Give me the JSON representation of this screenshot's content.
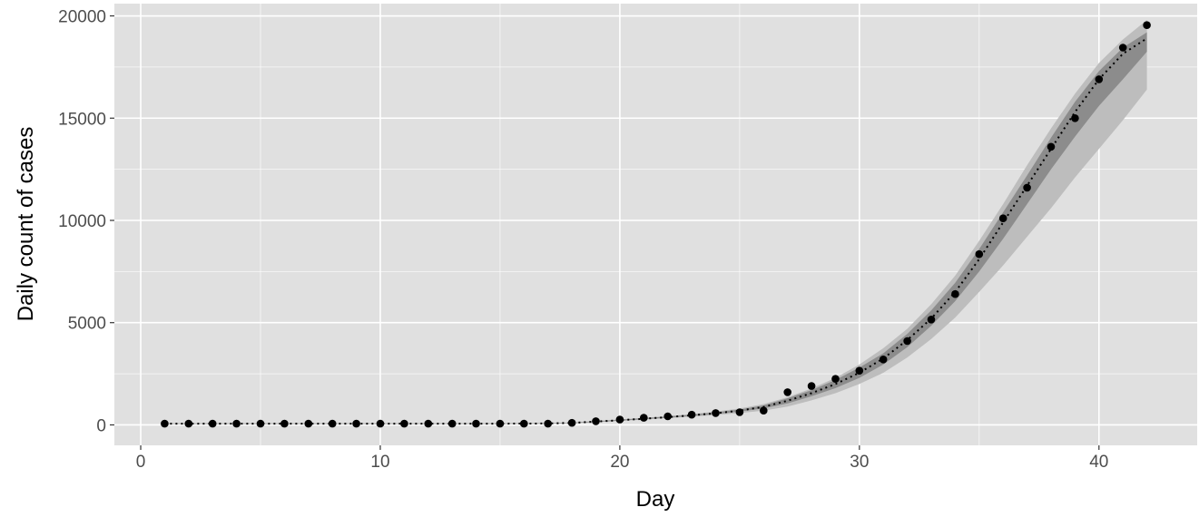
{
  "chart_data": {
    "type": "scatter",
    "title": "",
    "xlabel": "Day",
    "ylabel": "Daily  count of cases",
    "xlim": [
      -1.1,
      44.1
    ],
    "ylim": [
      -1000,
      20600
    ],
    "x_ticks": [
      0,
      10,
      20,
      30,
      40
    ],
    "y_ticks": [
      0,
      5000,
      10000,
      15000,
      20000
    ],
    "x_tick_labels": [
      "0",
      "10",
      "20",
      "30",
      "40"
    ],
    "y_tick_labels": [
      "0",
      "5000",
      "10000",
      "15000",
      "20000"
    ],
    "grid": true,
    "legend": "none",
    "colors": {
      "panel": "#e0e0e0",
      "grid_major": "#ffffff",
      "points": "#000000",
      "fit_line": "#000000",
      "band_outer": "#bdbdbd",
      "band_inner": "#8c8c8c"
    },
    "series": [
      {
        "kind": "points",
        "x": [
          1,
          2,
          3,
          4,
          5,
          6,
          7,
          8,
          9,
          10,
          11,
          12,
          13,
          14,
          15,
          16,
          17,
          18,
          19,
          20,
          21,
          22,
          23,
          24,
          25,
          26,
          27,
          28,
          29,
          30,
          31,
          32,
          33,
          34,
          35,
          36,
          37,
          38,
          39,
          40,
          41,
          42
        ],
        "values": [
          60,
          60,
          60,
          60,
          60,
          60,
          60,
          60,
          60,
          60,
          60,
          60,
          60,
          60,
          60,
          60,
          60,
          100,
          180,
          260,
          350,
          420,
          500,
          580,
          620,
          700,
          1600,
          1900,
          2250,
          2650,
          3200,
          4100,
          5150,
          6400,
          8350,
          10100,
          11600,
          13600,
          15000,
          16900,
          18450,
          19550
        ]
      },
      {
        "kind": "fit-line-dotted",
        "x": [
          1,
          5,
          10,
          15,
          17,
          18,
          19,
          20,
          21,
          22,
          23,
          24,
          25,
          26,
          27,
          28,
          29,
          30,
          31,
          32,
          33,
          34,
          35,
          36,
          37,
          38,
          39,
          40,
          41,
          42
        ],
        "values": [
          60,
          60,
          60,
          60,
          70,
          100,
          160,
          230,
          300,
          380,
          470,
          570,
          700,
          880,
          1180,
          1550,
          2000,
          2550,
          3250,
          4150,
          5200,
          6500,
          8100,
          9900,
          11700,
          13500,
          15300,
          16900,
          18150,
          18900
        ]
      },
      {
        "kind": "band-outer",
        "x": [
          1,
          5,
          10,
          15,
          17,
          18,
          19,
          20,
          21,
          22,
          23,
          24,
          25,
          26,
          27,
          28,
          29,
          30,
          31,
          32,
          33,
          34,
          35,
          36,
          37,
          38,
          39,
          40,
          41,
          42
        ],
        "lower": [
          40,
          40,
          40,
          40,
          50,
          80,
          130,
          190,
          260,
          330,
          400,
          480,
          580,
          700,
          900,
          1200,
          1550,
          2000,
          2550,
          3300,
          4200,
          5250,
          6500,
          7800,
          9200,
          10600,
          12100,
          13500,
          14900,
          16400
        ],
        "upper": [
          80,
          80,
          80,
          80,
          90,
          120,
          190,
          270,
          350,
          430,
          530,
          650,
          800,
          1020,
          1350,
          1780,
          2300,
          2950,
          3750,
          4700,
          5900,
          7300,
          9000,
          10800,
          12700,
          14500,
          16200,
          17700,
          18850,
          19800
        ]
      },
      {
        "kind": "band-inner",
        "x": [
          1,
          5,
          10,
          15,
          17,
          18,
          19,
          20,
          21,
          22,
          23,
          24,
          25,
          26,
          27,
          28,
          29,
          30,
          31,
          32,
          33,
          34,
          35,
          36,
          37,
          38,
          39,
          40,
          41,
          42
        ],
        "lower": [
          50,
          50,
          50,
          50,
          60,
          90,
          140,
          210,
          280,
          350,
          440,
          530,
          650,
          810,
          1050,
          1400,
          1800,
          2300,
          2950,
          3800,
          4850,
          6050,
          7500,
          9100,
          10800,
          12500,
          14100,
          15600,
          16900,
          18250
        ],
        "upper": [
          70,
          70,
          70,
          70,
          80,
          110,
          180,
          250,
          330,
          410,
          500,
          610,
          750,
          950,
          1300,
          1700,
          2200,
          2800,
          3500,
          4450,
          5600,
          6950,
          8600,
          10400,
          12200,
          14050,
          15800,
          17300,
          18450,
          19200
        ]
      }
    ]
  }
}
